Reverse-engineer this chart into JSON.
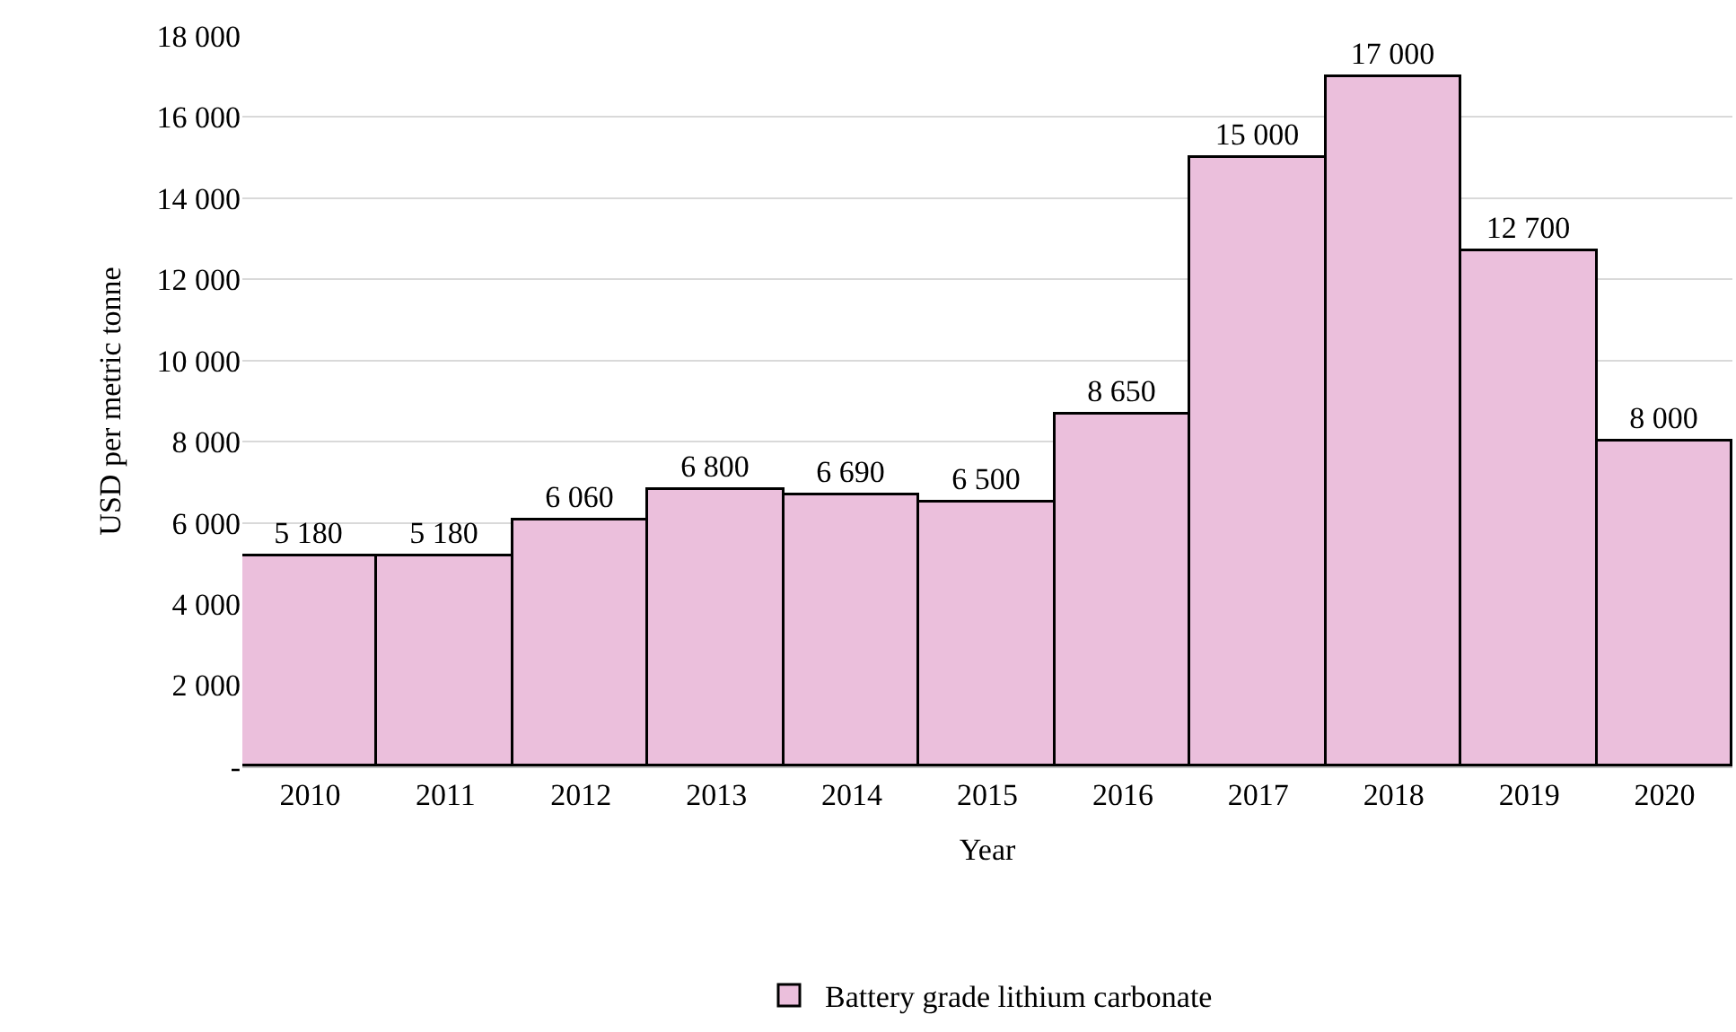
{
  "chart_data": {
    "type": "bar",
    "xlabel": "Year",
    "ylabel": "USD per metric tonne",
    "categories": [
      "2010",
      "2011",
      "2012",
      "2013",
      "2014",
      "2015",
      "2016",
      "2017",
      "2018",
      "2019",
      "2020"
    ],
    "series": [
      {
        "name": "Battery grade lithium carbonate",
        "color": "#ebbfdc",
        "values": [
          5180,
          5180,
          6060,
          6800,
          6690,
          6500,
          8650,
          15000,
          17000,
          12700,
          8000
        ],
        "value_labels": [
          "5 180",
          "5 180",
          "6 060",
          "6 800",
          "6 690",
          "6 500",
          "8 650",
          "15 000",
          "17 000",
          "12 700",
          "8 000"
        ]
      }
    ],
    "ylim": [
      0,
      18000
    ],
    "yticks": [
      {
        "value": 0,
        "label": "-"
      },
      {
        "value": 2000,
        "label": "2 000"
      },
      {
        "value": 4000,
        "label": "4 000"
      },
      {
        "value": 6000,
        "label": "6 000"
      },
      {
        "value": 8000,
        "label": "8 000"
      },
      {
        "value": 10000,
        "label": "10 000"
      },
      {
        "value": 12000,
        "label": "12 000"
      },
      {
        "value": 14000,
        "label": "14 000"
      },
      {
        "value": 16000,
        "label": "16 000"
      },
      {
        "value": 18000,
        "label": "18 000"
      }
    ],
    "grid": "y",
    "legend": "bottom"
  }
}
